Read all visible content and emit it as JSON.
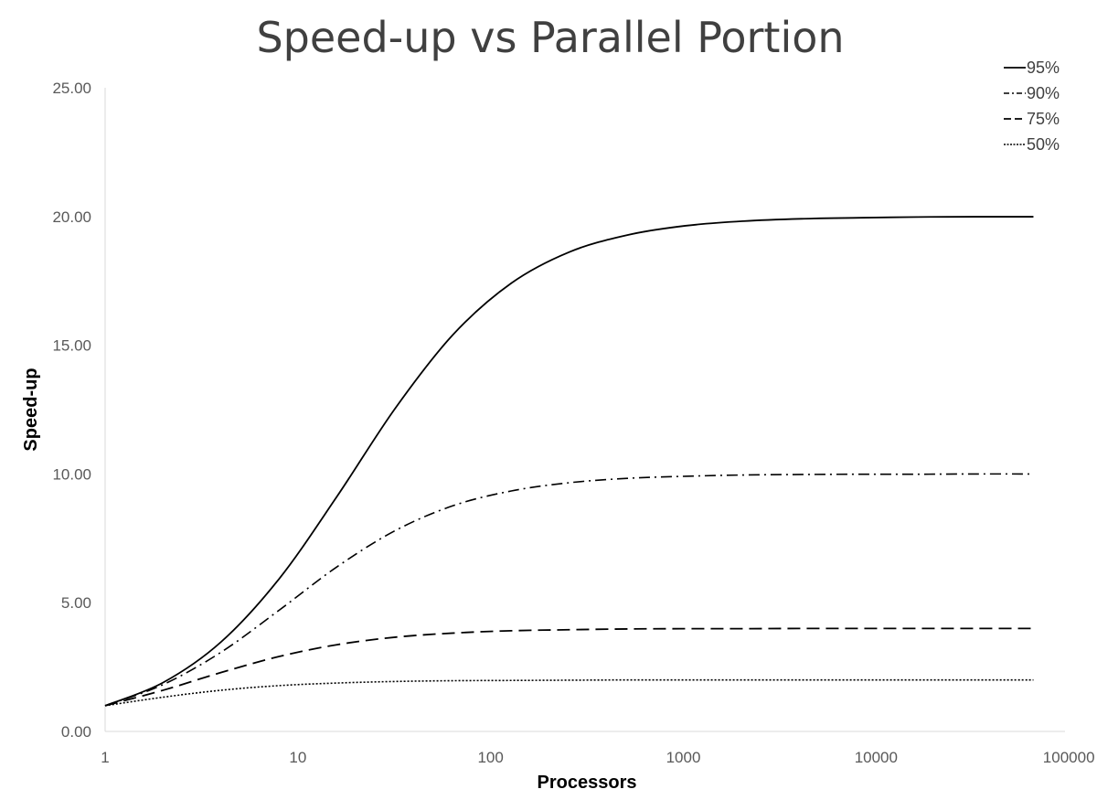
{
  "chart_data": {
    "type": "line",
    "title": "Speed-up vs Parallel Portion",
    "xlabel": "Processors",
    "ylabel": "Speed-up",
    "x_scale": "log",
    "xlim": [
      1,
      100000
    ],
    "ylim": [
      0,
      25
    ],
    "x_ticks": [
      "1",
      "10",
      "100",
      "1000",
      "10000",
      "100000"
    ],
    "y_ticks": [
      "0.00",
      "5.00",
      "10.00",
      "15.00",
      "20.00",
      "25.00"
    ],
    "grid": false,
    "legend_position": "top-right",
    "x": [
      1,
      2,
      4,
      8,
      16,
      32,
      64,
      128,
      256,
      512,
      1024,
      2048,
      4096,
      8192,
      16384,
      32768,
      65536
    ],
    "series": [
      {
        "name": "95%",
        "style": "solid",
        "values": [
          1.0,
          1.9,
          3.48,
          5.93,
          9.14,
          12.55,
          15.42,
          17.41,
          18.62,
          19.28,
          19.64,
          19.82,
          19.91,
          19.95,
          19.98,
          19.99,
          19.99
        ]
      },
      {
        "name": "90%",
        "style": "dashdot",
        "values": [
          1.0,
          1.82,
          3.08,
          4.71,
          6.4,
          7.8,
          8.77,
          9.34,
          9.66,
          9.83,
          9.91,
          9.96,
          9.98,
          9.99,
          9.99,
          10.0,
          10.0
        ]
      },
      {
        "name": "75%",
        "style": "dashed",
        "values": [
          1.0,
          1.6,
          2.29,
          2.91,
          3.37,
          3.66,
          3.82,
          3.91,
          3.95,
          3.98,
          3.99,
          3.99,
          4.0,
          4.0,
          4.0,
          4.0,
          4.0
        ]
      },
      {
        "name": "50%",
        "style": "dotted",
        "values": [
          1.0,
          1.33,
          1.6,
          1.78,
          1.88,
          1.94,
          1.97,
          1.98,
          1.99,
          2.0,
          2.0,
          2.0,
          2.0,
          2.0,
          2.0,
          2.0,
          2.0
        ]
      }
    ]
  }
}
